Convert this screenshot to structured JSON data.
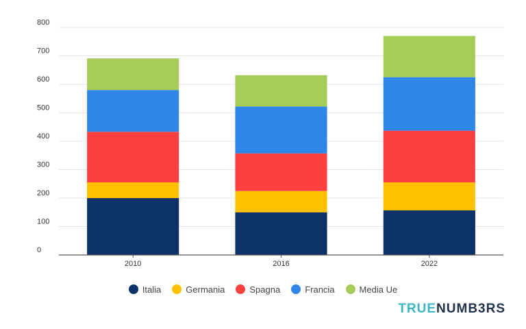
{
  "chart_data": {
    "type": "bar",
    "stacked": true,
    "title": "",
    "xlabel": "",
    "ylabel": "",
    "categories": [
      "2010",
      "2016",
      "2022"
    ],
    "yticks": [
      "0",
      "100",
      "200",
      "300",
      "400",
      "500",
      "600",
      "700",
      "800"
    ],
    "ylim": [
      0,
      800
    ],
    "grid": true,
    "legend_position": "bottom",
    "series": [
      {
        "name": "Italia",
        "color": "#0c3169",
        "values": [
          200,
          150,
          157
        ]
      },
      {
        "name": "Germania",
        "color": "#fcc000",
        "values": [
          55,
          75,
          98
        ]
      },
      {
        "name": "Spagna",
        "color": "#fc4040",
        "values": [
          178,
          132,
          182
        ]
      },
      {
        "name": "Francia",
        "color": "#2e86e6",
        "values": [
          147,
          165,
          188
        ]
      },
      {
        "name": "Media Ue",
        "color": "#a6cb59",
        "values": [
          111,
          110,
          145
        ]
      }
    ]
  },
  "brand": {
    "part1": "TRUE",
    "part2": "NUMB3RS"
  }
}
